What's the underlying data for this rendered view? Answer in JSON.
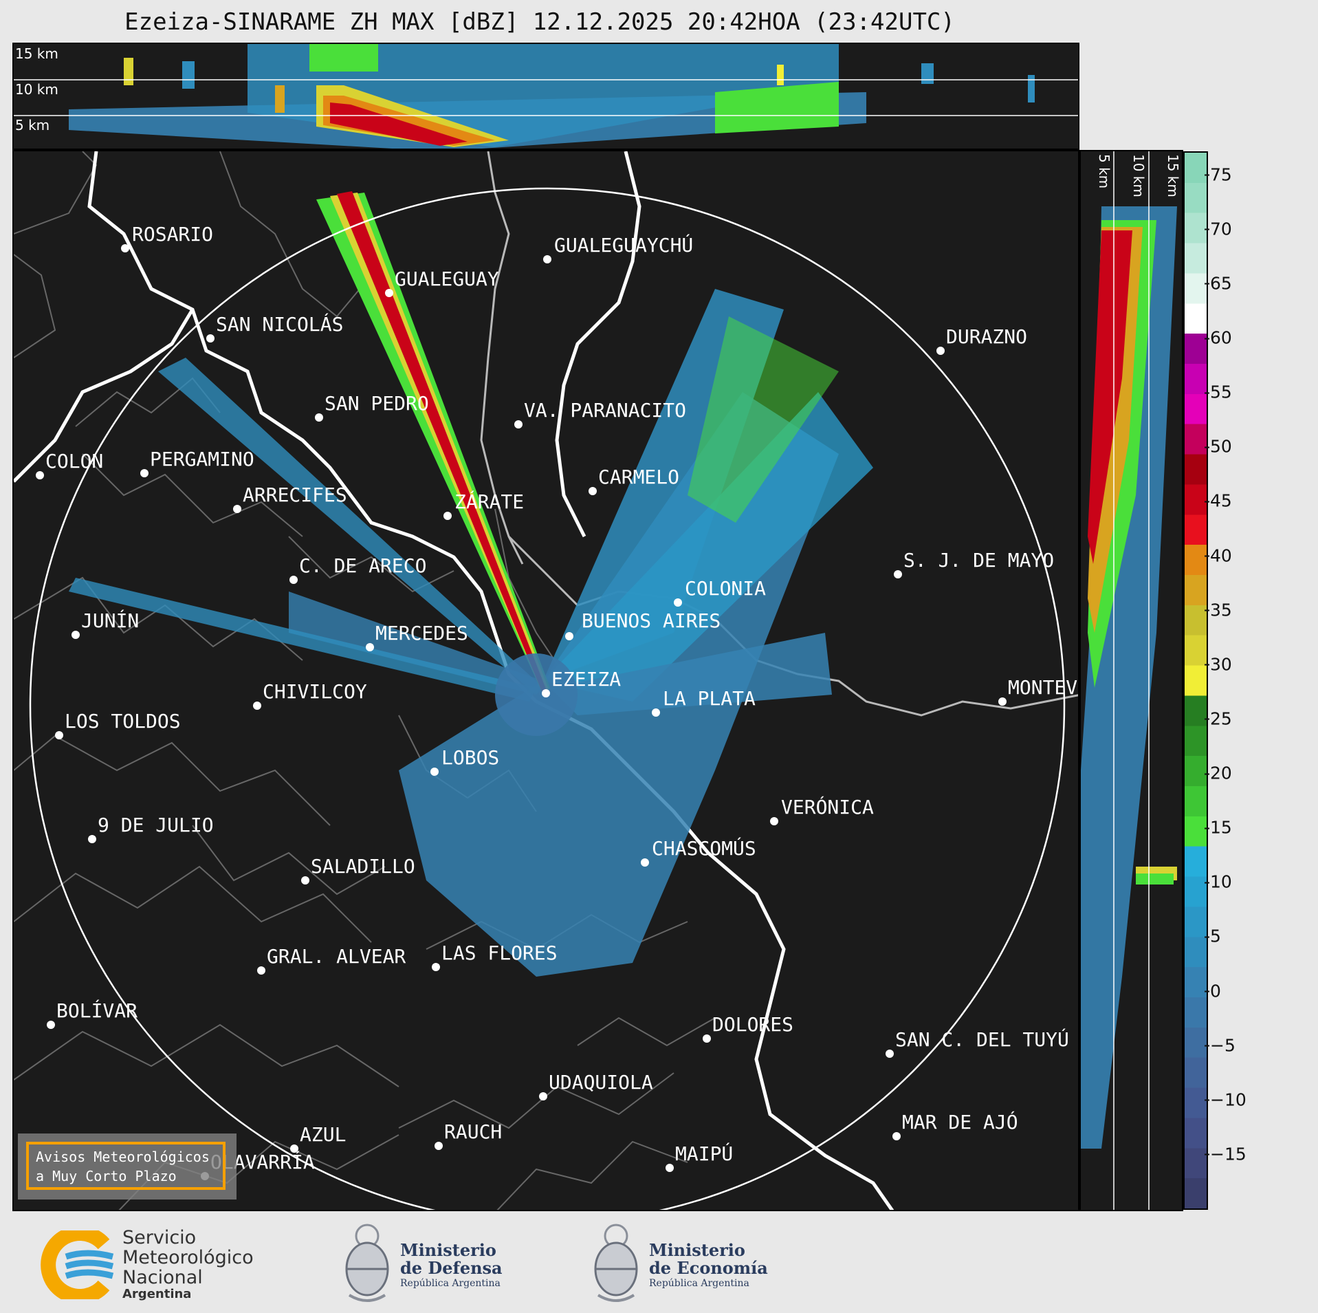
{
  "title": "Ezeiza-SINARAME ZH MAX [dBZ] 12.12.2025 20:42HOA (23:42UTC)",
  "top_panel": {
    "height_labels": [
      "15 km",
      "10 km",
      "5 km"
    ]
  },
  "side_panel": {
    "height_labels": [
      "5 km",
      "10 km",
      "15 km"
    ]
  },
  "colorbar": {
    "unit": "dBZ",
    "ticks": [
      "75",
      "70",
      "65",
      "60",
      "55",
      "50",
      "45",
      "40",
      "35",
      "30",
      "25",
      "20",
      "15",
      "10",
      "5",
      "0",
      "−5",
      "−10",
      "−15"
    ],
    "range": [
      -20,
      77
    ],
    "colors": [
      "#3a3f6c",
      "#40477a",
      "#435088",
      "#435a93",
      "#41649a",
      "#3e6ea1",
      "#3a78aa",
      "#3682b3",
      "#2f8dbd",
      "#2b97c6",
      "#27a2d0",
      "#26aedb",
      "#4adf3a",
      "#3ec635",
      "#35ad2e",
      "#2d9427",
      "#267e22",
      "#f1ee36",
      "#d9d233",
      "#c8bf2f",
      "#d8a420",
      "#e38914",
      "#e8101e",
      "#c90318",
      "#a60010",
      "#c4005c",
      "#e400b8",
      "#c800b2",
      "#9e0094",
      "#ffffff",
      "#e3f5ee",
      "#c6ebde",
      "#aee3cf",
      "#98dcc2",
      "#88d6b8"
    ]
  },
  "cities": [
    {
      "name": "ROSARIO"
    },
    {
      "name": "GUALEGUAYCHÚ"
    },
    {
      "name": "GUALEGUAY"
    },
    {
      "name": "SAN NICOLÁS"
    },
    {
      "name": "DURAZNO"
    },
    {
      "name": "SAN PEDRO"
    },
    {
      "name": "VA. PARANACITO"
    },
    {
      "name": "COLON"
    },
    {
      "name": "PERGAMINO"
    },
    {
      "name": "CARMELO"
    },
    {
      "name": "ARRECIFES"
    },
    {
      "name": "ZÁRATE"
    },
    {
      "name": "S. J. DE MAYO"
    },
    {
      "name": "C. DE ARECO"
    },
    {
      "name": "COLONIA"
    },
    {
      "name": "JUNÍN"
    },
    {
      "name": "BUENOS AIRES"
    },
    {
      "name": "MERCEDES"
    },
    {
      "name": "MONTEV"
    },
    {
      "name": "EZEIZA"
    },
    {
      "name": "CHIVILCOY"
    },
    {
      "name": "LA PLATA"
    },
    {
      "name": "LOS TOLDOS"
    },
    {
      "name": "LOBOS"
    },
    {
      "name": "VERÓNICA"
    },
    {
      "name": "9 DE JULIO"
    },
    {
      "name": "CHASCOMÚS"
    },
    {
      "name": "SALADILLO"
    },
    {
      "name": "GRAL. ALVEAR"
    },
    {
      "name": "LAS FLORES"
    },
    {
      "name": "BOLÍVAR"
    },
    {
      "name": "DOLORES"
    },
    {
      "name": "SAN C. DEL TUYÚ"
    },
    {
      "name": "UDAQUIOLA"
    },
    {
      "name": "MAR DE AJÓ"
    },
    {
      "name": "AZUL"
    },
    {
      "name": "RAUCH"
    },
    {
      "name": "OLAVARRÍA"
    },
    {
      "name": "MAIPÚ"
    }
  ],
  "warning_box": {
    "line1": "Avisos Meteorológicos",
    "line2": "a Muy Corto Plazo",
    "border_color": "#f5a000"
  },
  "logos": {
    "smn": {
      "line1": "Servicio",
      "line2": "Meteorológico",
      "line3": "Nacional",
      "line4": "Argentina"
    },
    "defensa": {
      "line1": "Ministerio",
      "line2": "de Defensa",
      "line3": "República Argentina"
    },
    "economia": {
      "line1": "Ministerio",
      "line2": "de Economía",
      "line3": "República Argentina"
    }
  }
}
